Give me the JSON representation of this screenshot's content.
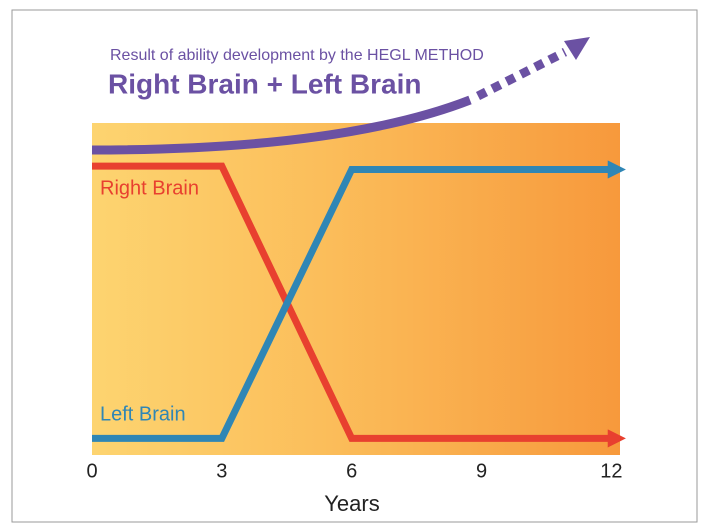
{
  "chart_data": {
    "type": "line",
    "subtitle": "Result of ability development by the HEGL METHOD",
    "title": "Right Brain + Left Brain",
    "x_label": "Years",
    "xlim": [
      0,
      12.2
    ],
    "xticks": [
      0,
      3,
      6,
      9,
      12
    ],
    "ylim": [
      0,
      10
    ],
    "series": [
      {
        "name": "Right Brain",
        "color": "#e8402f",
        "x": [
          0,
          3,
          6,
          12
        ],
        "values": [
          8.7,
          8.7,
          0.5,
          0.5
        ]
      },
      {
        "name": "Left Brain",
        "color": "#2f86b5",
        "x": [
          0,
          3,
          6,
          12
        ],
        "values": [
          0.5,
          0.5,
          8.6,
          8.6
        ]
      }
    ]
  }
}
